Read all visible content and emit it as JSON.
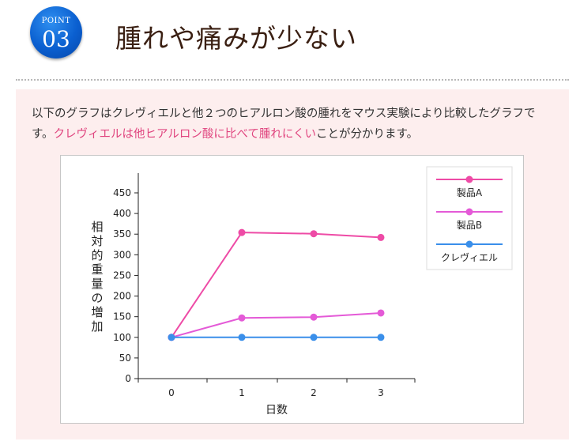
{
  "header": {
    "badge_label": "POINT",
    "badge_number": "03",
    "title": "腫れや痛みが少ない"
  },
  "description": {
    "text_before": "以下のグラフはクレヴィエルと他２つのヒアルロン酸の腫れをマウス実験により比較したグラフです。",
    "highlight": "クレヴィエルは他ヒアルロン酸に比べて腫れにくい",
    "text_after": "ことが分かります。"
  },
  "colors": {
    "badge_blue": "#0a5fd0",
    "highlight_pink": "#e0457f",
    "panel_bg": "#fdeeee"
  },
  "chart_data": {
    "type": "line",
    "x": [
      0,
      1,
      2,
      3
    ],
    "x_ticks": [
      "0",
      "1",
      "2",
      "3"
    ],
    "y_ticks": [
      "0",
      "50",
      "100",
      "150",
      "200",
      "250",
      "300",
      "350",
      "400",
      "450"
    ],
    "ylim": [
      0,
      450
    ],
    "xlabel": "日数",
    "ylabel": "相対的重量の増加",
    "legend_position": "top-right",
    "series": [
      {
        "name": "製品A",
        "color": "#ee4ba6",
        "values": [
          100,
          354,
          351,
          342
        ]
      },
      {
        "name": "製品B",
        "color": "#e45ad7",
        "values": [
          100,
          147,
          149,
          159
        ]
      },
      {
        "name": "クレヴィエル",
        "color": "#3a8fea",
        "values": [
          100,
          100,
          100,
          100
        ]
      }
    ]
  }
}
